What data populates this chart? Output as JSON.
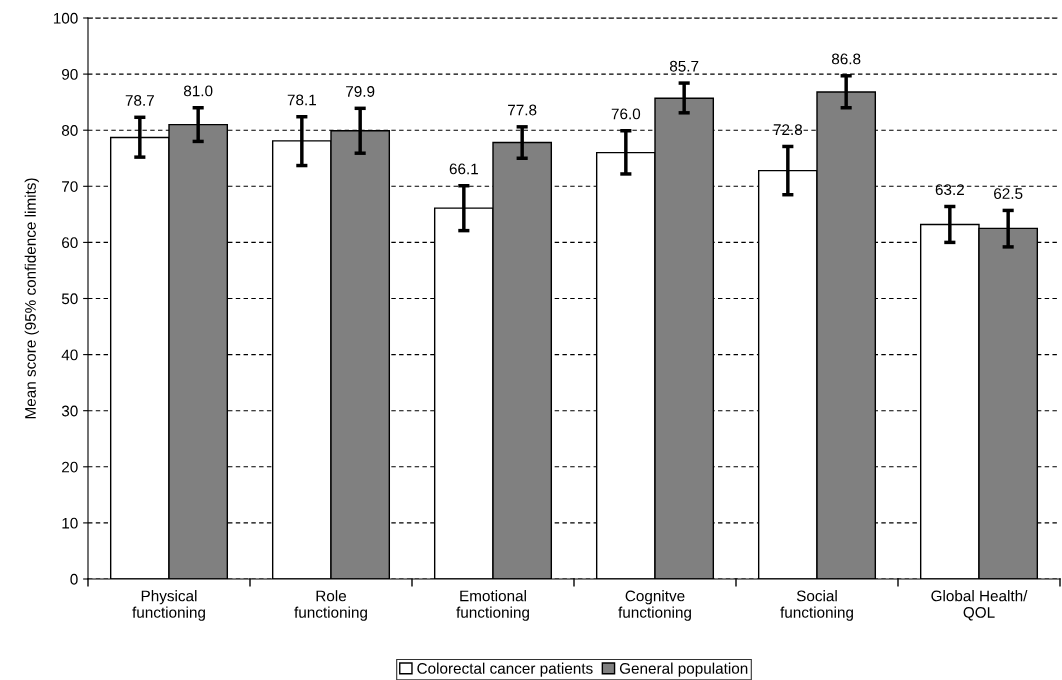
{
  "chart_data": {
    "type": "bar",
    "ylabel": "Mean score (95% confidence limits)",
    "categories": [
      "Physical\nfunctioning",
      "Role\nfunctioning",
      "Emotional\nfunctioning",
      "Cognitve\nfunctioning",
      "Social\nfunctioning",
      "Global Health/\nQOL"
    ],
    "series": [
      {
        "name": "Colorectal cancer patients",
        "color": "#ffffff",
        "values": [
          78.7,
          78.1,
          66.1,
          76.0,
          72.8,
          63.2
        ],
        "value_labels": [
          "78.7",
          "78.1",
          "66.1",
          "76.0",
          "72.8",
          "63.2"
        ],
        "errors": [
          [
            75.2,
            82.3
          ],
          [
            73.7,
            82.4
          ],
          [
            62.1,
            70.1
          ],
          [
            72.2,
            79.9
          ],
          [
            68.5,
            77.1
          ],
          [
            60.0,
            66.4
          ]
        ]
      },
      {
        "name": "General population",
        "color": "#808080",
        "values": [
          81.0,
          79.9,
          77.8,
          85.7,
          86.8,
          62.5
        ],
        "value_labels": [
          "81.0",
          "79.9",
          "77.8",
          "85.7",
          "86.8",
          "62.5"
        ],
        "errors": [
          [
            78.0,
            84.0
          ],
          [
            75.9,
            83.9
          ],
          [
            75.0,
            80.6
          ],
          [
            83.1,
            88.4
          ],
          [
            84.0,
            89.7
          ],
          [
            59.2,
            65.7
          ]
        ]
      }
    ],
    "ylim": [
      0,
      100
    ],
    "yticks": [
      0,
      10,
      20,
      30,
      40,
      50,
      60,
      70,
      80,
      90,
      100
    ],
    "grid": "y",
    "legend": "bottom"
  }
}
